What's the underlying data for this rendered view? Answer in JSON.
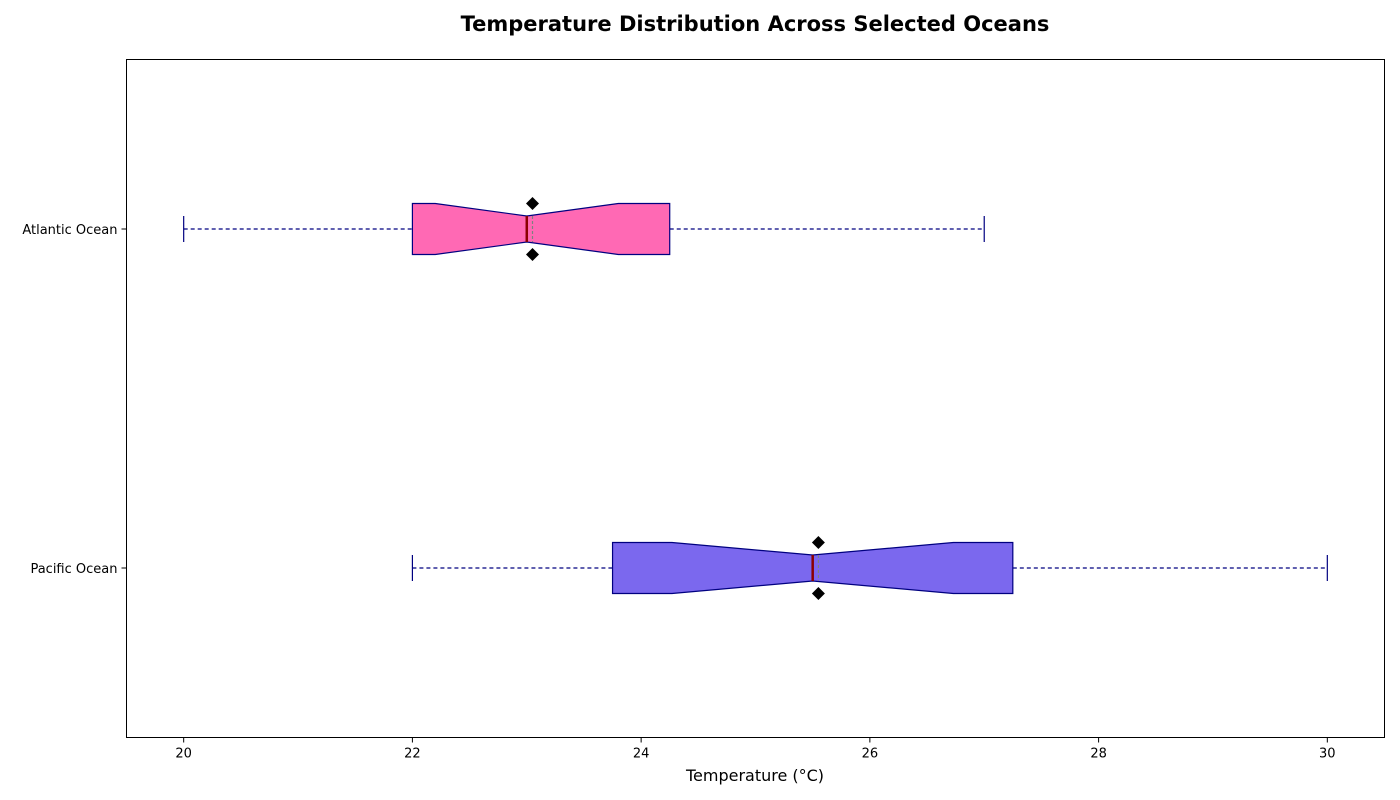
{
  "chart_data": {
    "type": "boxplot",
    "orientation": "horizontal",
    "title": "Temperature Distribution Across Selected Oceans",
    "xlabel": "Temperature (°C)",
    "ylabel": "",
    "xlim": [
      19.5,
      30.5
    ],
    "xticks": [
      20,
      22,
      24,
      26,
      28,
      30
    ],
    "grid": false,
    "notched": true,
    "series": [
      {
        "name": "Atlantic Ocean",
        "whisker_low": 20,
        "q1": 22,
        "median": 23,
        "mean": 23.05,
        "q3": 24.25,
        "whisker_high": 27,
        "notch_low": 22.2,
        "notch_high": 23.8,
        "box_color": "#ff69b4"
      },
      {
        "name": "Pacific Ocean",
        "whisker_low": 22,
        "q1": 23.75,
        "median": 25.5,
        "mean": 25.55,
        "q3": 27.25,
        "whisker_high": 30,
        "notch_low": 24.27,
        "notch_high": 26.73,
        "box_color": "#7b68ee"
      }
    ],
    "colors": {
      "edge": "#000080",
      "median": "#8b0000",
      "mean_line": "#808080",
      "marker": "#000000"
    }
  }
}
